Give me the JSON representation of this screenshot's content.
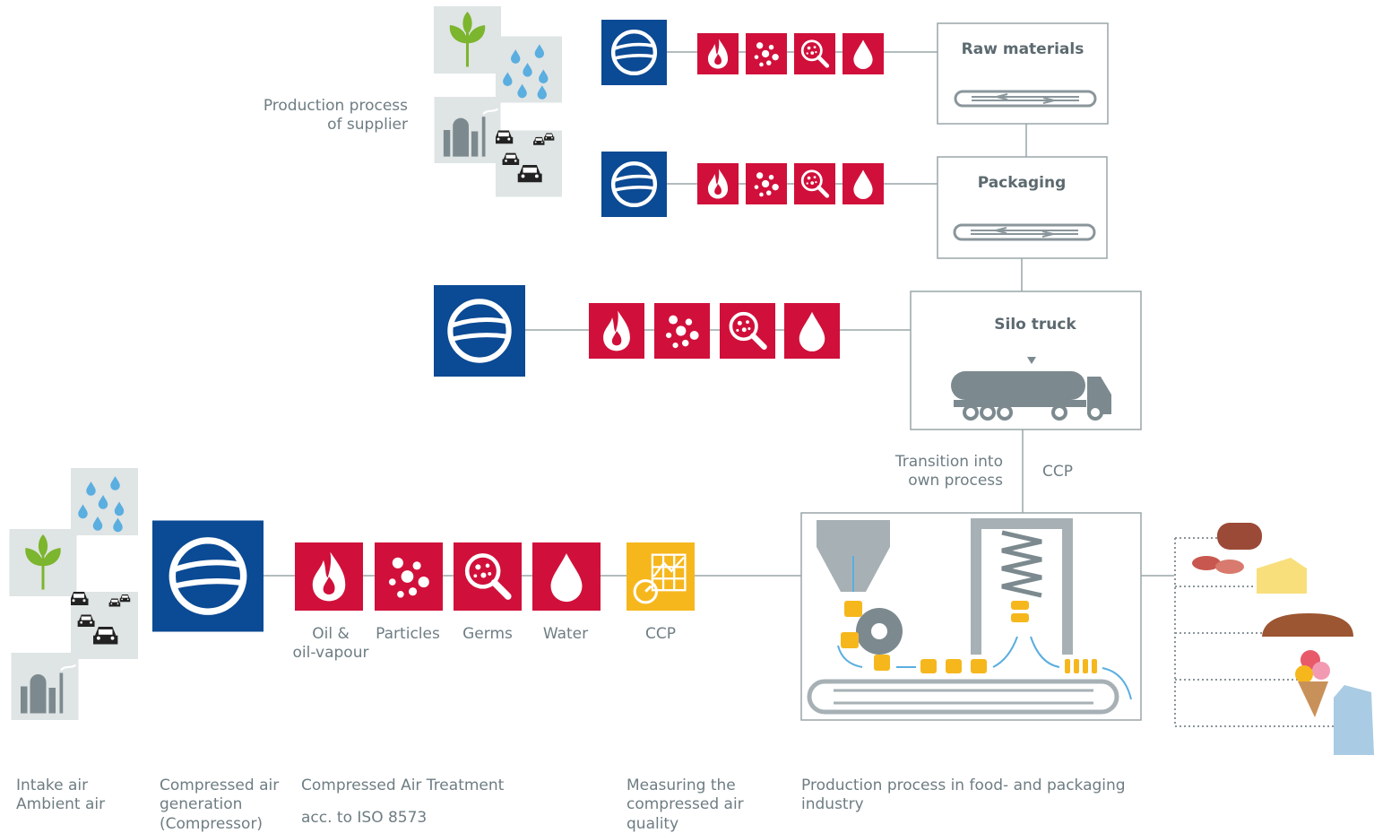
{
  "supplier_label": [
    "Production process",
    "of supplier"
  ],
  "stations": [
    "Raw materials",
    "Packaging",
    "Silo truck"
  ],
  "transition_label": [
    "Transition into",
    "own process"
  ],
  "transition_ccp": "CCP",
  "treatment_labels": [
    [
      "Oil &",
      "oil-vapour"
    ],
    [
      "Particles"
    ],
    [
      "Germs"
    ],
    [
      "Water"
    ]
  ],
  "measuring_label": "CCP",
  "captions": [
    [
      "Intake air",
      "Ambient air"
    ],
    [
      "Compressed air",
      "generation",
      "(Compressor)"
    ],
    [
      "Compressed Air Treatment"
    ],
    [
      "acc. to ISO 8573"
    ],
    [
      "Measuring the",
      "compressed air",
      "quality"
    ],
    [
      "Production process in food- and packaging",
      "industry"
    ]
  ]
}
